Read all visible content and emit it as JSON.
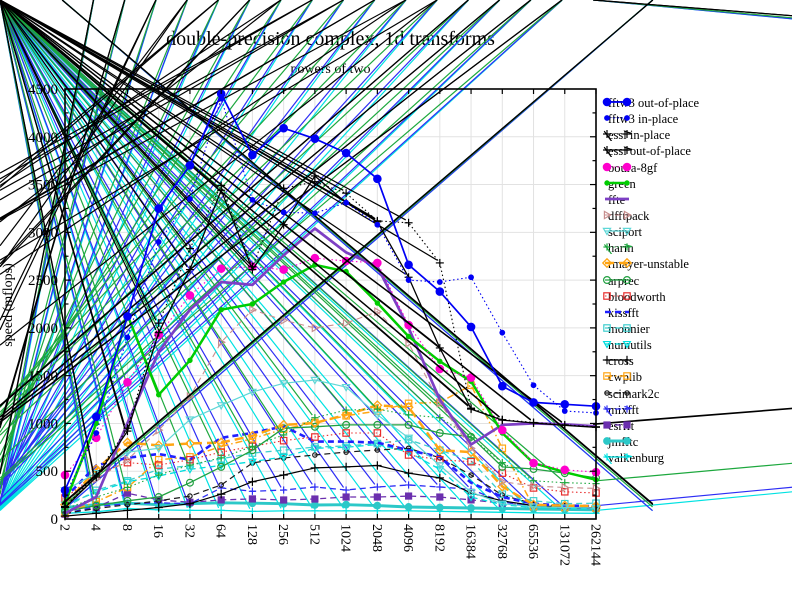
{
  "chart_data": {
    "type": "line",
    "title": "double-precision complex, 1d transforms",
    "subtitle": "powers of two",
    "ylabel": "speed (mflops)",
    "xlabel": "",
    "x_scale": "log2",
    "grid": true,
    "legend_position": "right-outside",
    "ylim": [
      0,
      4500
    ],
    "ytick_major": 500,
    "ytick_minor": 250,
    "grid_color": "#e2e2e2",
    "frame_color": "#000000",
    "categories": [
      2,
      4,
      8,
      16,
      32,
      64,
      128,
      256,
      512,
      1024,
      2048,
      4096,
      8192,
      16384,
      32768,
      65536,
      131072,
      262144
    ],
    "series": [
      {
        "name": "fftw3 out-of-place",
        "color": "#0000f5",
        "dash": "solid",
        "width": 1.7,
        "marker": "circle",
        "fill": true,
        "size": 3.7,
        "values": [
          300,
          1070,
          2120,
          3250,
          3700,
          4450,
          3810,
          4090,
          3980,
          3830,
          3560,
          2660,
          2380,
          2010,
          1390,
          1220,
          1200,
          1180
        ]
      },
      {
        "name": "fftw3 in-place",
        "color": "#0000f5",
        "dash": "dotted",
        "width": 1.1,
        "marker": "circle",
        "fill": true,
        "size": 2.3,
        "values": [
          250,
          900,
          1900,
          2900,
          3350,
          4400,
          3340,
          3210,
          3200,
          3310,
          3080,
          2500,
          2480,
          2530,
          1950,
          1400,
          1130,
          1110
        ]
      },
      {
        "name": "essl in-place",
        "color": "#000000",
        "dash": "dotted",
        "width": 1.1,
        "marker": "asterisk",
        "fill": false,
        "size": 4.0,
        "values": [
          130,
          460,
          950,
          2050,
          2830,
          3490,
          2640,
          3460,
          3530,
          3410,
          3120,
          3100,
          2680,
          1160,
          1040,
          1010,
          985,
          965
        ]
      },
      {
        "name": "essl out-of-place",
        "color": "#000000",
        "dash": "solid",
        "width": 1.3,
        "marker": "asterisk",
        "fill": false,
        "size": 4.0,
        "values": [
          120,
          440,
          920,
          1950,
          2610,
          3440,
          2610,
          3080,
          3590,
          3310,
          3110,
          2530,
          1790,
          1150,
          1035,
          1005,
          980,
          960
        ]
      },
      {
        "name": "ooura-8gf",
        "color": "#ff00cc",
        "dash": "dotted",
        "width": 1.1,
        "marker": "circle",
        "fill": true,
        "size": 3.7,
        "values": [
          460,
          850,
          1430,
          1930,
          2340,
          2620,
          2640,
          2610,
          2730,
          2700,
          2680,
          2030,
          1570,
          1480,
          930,
          585,
          515,
          490
        ]
      },
      {
        "name": "green",
        "color": "#00cc00",
        "dash": "solid",
        "width": 2.5,
        "marker": "circle",
        "fill": true,
        "size": 2.1,
        "values": [
          170,
          1000,
          2135,
          1300,
          1660,
          2190,
          2250,
          2480,
          2660,
          2590,
          2260,
          1910,
          1650,
          1440,
          900,
          585,
          490,
          410
        ]
      },
      {
        "name": "ffte",
        "color": "#7d3fc4",
        "dash": "solid",
        "width": 2.7,
        "marker": "none",
        "fill": false,
        "size": 0,
        "values": [
          60,
          230,
          1005,
          1750,
          2190,
          2480,
          2450,
          2760,
          3040,
          2790,
          2640,
          2000,
          1250,
          780,
          985,
          1000,
          990,
          970
        ]
      },
      {
        "name": "dfftpack",
        "color": "#c88f8f",
        "dash": "dashed",
        "width": 1.1,
        "marker": "tri-right",
        "fill": false,
        "size": 3.6,
        "values": [
          180,
          420,
          620,
          930,
          1280,
          1850,
          2190,
          2080,
          2000,
          2050,
          2170,
          1840,
          1215,
          740,
          390,
          345,
          330,
          320
        ]
      },
      {
        "name": "sciport",
        "color": "#5fd7d7",
        "dash": "solid",
        "width": 1.2,
        "marker": "tri-down",
        "fill": false,
        "size": 3.6,
        "values": [
          300,
          480,
          700,
          740,
          1040,
          1190,
          1330,
          1420,
          1455,
          1380,
          1090,
          850,
          560,
          280,
          160,
          130,
          120,
          115
        ]
      },
      {
        "name": "harm",
        "color": "#1da83e",
        "dash": "dotted",
        "width": 1.1,
        "marker": "asterisk",
        "fill": false,
        "size": 3.6,
        "values": [
          100,
          230,
          330,
          460,
          565,
          640,
          760,
          880,
          1060,
          1140,
          1150,
          1090,
          1060,
          850,
          590,
          400,
          380,
          370
        ]
      },
      {
        "name": "rmayer-unstable",
        "color": "#ffa513",
        "dash": "longdash",
        "width": 2.5,
        "marker": "diamond",
        "fill": false,
        "size": 4.2,
        "values": [
          150,
          520,
          800,
          770,
          790,
          800,
          870,
          985,
          1005,
          1090,
          1190,
          1170,
          720,
          700,
          340,
          150,
          140,
          135
        ]
      },
      {
        "name": "arprec",
        "color": "#20a040",
        "dash": "solid",
        "width": 1.3,
        "marker": "circle",
        "fill": false,
        "size": 3.4,
        "values": [
          80,
          140,
          190,
          230,
          380,
          545,
          720,
          950,
          965,
          985,
          985,
          985,
          900,
          860,
          545,
          523,
          480,
          430
        ]
      },
      {
        "name": "bloodworth",
        "color": "#e82c2c",
        "dash": "dotted",
        "width": 1.1,
        "marker": "square",
        "fill": false,
        "size": 3.2,
        "values": [
          220,
          470,
          590,
          565,
          620,
          700,
          760,
          820,
          858,
          900,
          900,
          670,
          620,
          600,
          480,
          325,
          285,
          272
        ]
      },
      {
        "name": "kissfft",
        "color": "#2020ff",
        "dash": "dashed",
        "width": 2.6,
        "marker": "none",
        "fill": false,
        "size": 0,
        "values": [
          220,
          560,
          640,
          680,
          620,
          850,
          900,
          970,
          810,
          810,
          800,
          720,
          650,
          380,
          230,
          160,
          140,
          135
        ]
      },
      {
        "name": "monnier",
        "color": "#3ecfcf",
        "dash": "dashed",
        "width": 1.3,
        "marker": "square",
        "fill": false,
        "size": 3.2,
        "values": [
          120,
          300,
          400,
          520,
          560,
          630,
          690,
          720,
          754,
          764,
          790,
          830,
          720,
          610,
          260,
          190,
          160,
          165
        ]
      },
      {
        "name": "numutils",
        "color": "#00dede",
        "dash": "dashed",
        "width": 1.3,
        "marker": "tri-down",
        "fill": false,
        "size": 3.4,
        "values": [
          150,
          280,
          390,
          450,
          520,
          560,
          600,
          650,
          740,
          750,
          780,
          700,
          520,
          230,
          150,
          120,
          110,
          105
        ]
      },
      {
        "name": "cross",
        "color": "#000000",
        "dash": "solid",
        "width": 1.2,
        "marker": "plus",
        "fill": false,
        "size": 4.2,
        "values": [
          30,
          60,
          90,
          120,
          160,
          260,
          390,
          460,
          535,
          545,
          560,
          480,
          430,
          270,
          190,
          140,
          125,
          115
        ]
      },
      {
        "name": "cwplib",
        "color": "#ffa513",
        "dash": "dashdot",
        "width": 1.5,
        "marker": "square",
        "fill": false,
        "size": 3.2,
        "values": [
          60,
          180,
          330,
          620,
          650,
          760,
          840,
          940,
          1010,
          1080,
          1130,
          1210,
          1220,
          1400,
          740,
          130,
          120,
          115
        ]
      },
      {
        "name": "scimark2c",
        "color": "#1a1a1a",
        "dash": "dashed",
        "width": 1.2,
        "marker": "circle",
        "fill": false,
        "size": 2.2,
        "values": [
          60,
          110,
          150,
          190,
          240,
          356,
          586,
          638,
          670,
          700,
          722,
          740,
          640,
          460,
          250,
          160,
          130,
          120
        ]
      },
      {
        "name": "mixfft",
        "color": "#2e2ef5",
        "dash": "dashed",
        "width": 1.3,
        "marker": "asterisk",
        "fill": false,
        "size": 3.6,
        "values": [
          60,
          130,
          160,
          170,
          160,
          325,
          290,
          303,
          335,
          303,
          335,
          356,
          335,
          310,
          180,
          130,
          115,
          110
        ]
      },
      {
        "name": "esrfft",
        "color": "#6b2fae",
        "dash": "dashed",
        "width": 1.3,
        "marker": "square",
        "fill": true,
        "size": 3.0,
        "values": [
          50,
          120,
          270,
          200,
          175,
          200,
          210,
          199,
          209,
          230,
          230,
          240,
          230,
          200,
          165,
          140,
          125,
          115
        ]
      },
      {
        "name": "jmfftc",
        "color": "#2cc8c8",
        "dash": "solid",
        "width": 2.9,
        "marker": "circle",
        "fill": true,
        "size": 3.3,
        "values": [
          120,
          150,
          165,
          150,
          160,
          170,
          165,
          160,
          147,
          150,
          140,
          126,
          120,
          115,
          110,
          105,
          100,
          95
        ]
      },
      {
        "name": "valkenburg",
        "color": "#00e2e2",
        "dash": "solid",
        "width": 1.3,
        "marker": "asterisk",
        "fill": false,
        "size": 3.6,
        "values": [
          60,
          75,
          110,
          95,
          90,
          90,
          80,
          85,
          85,
          85,
          85,
          85,
          80,
          75,
          70,
          65,
          62,
          60
        ]
      }
    ]
  }
}
